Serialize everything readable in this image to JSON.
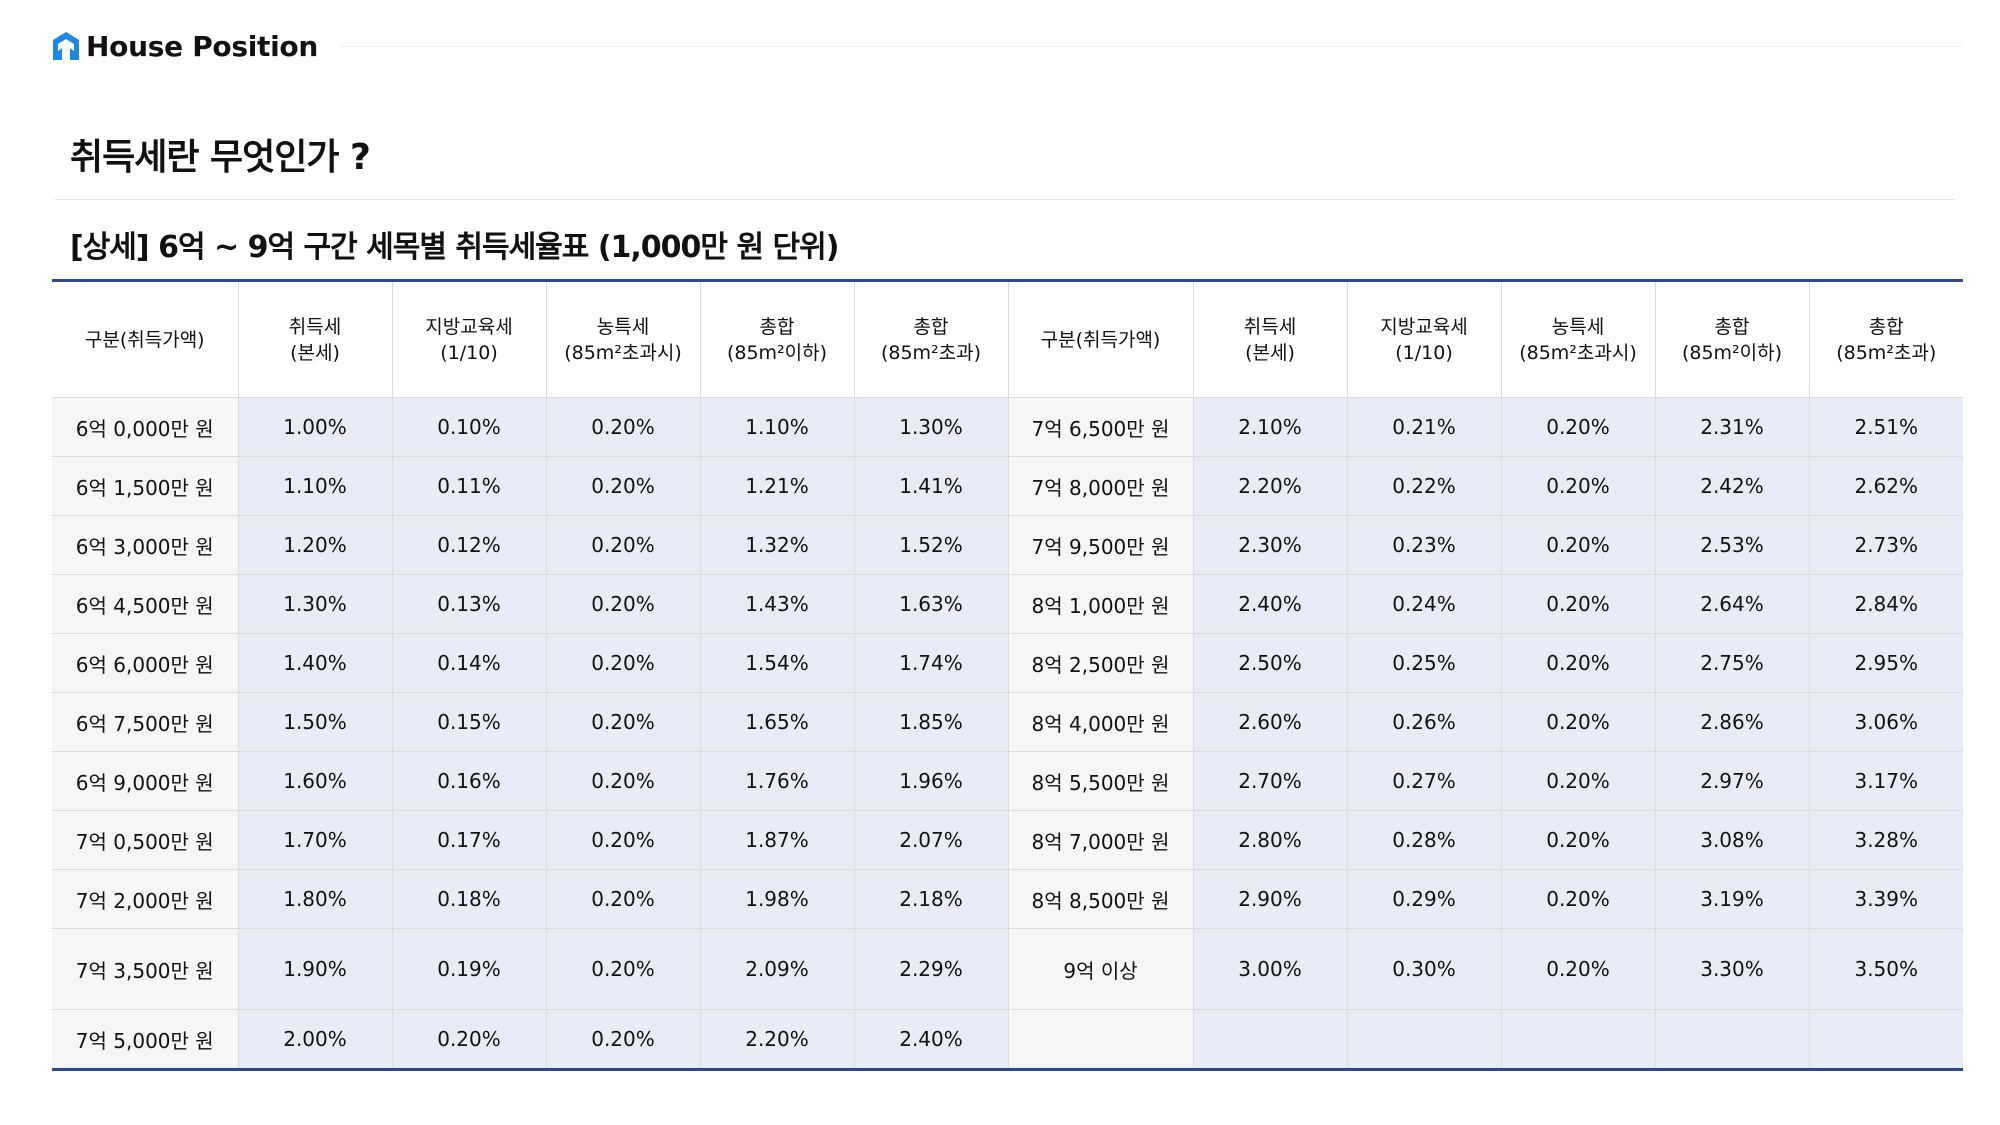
{
  "brand": "House Position",
  "page_title": "취득세란 무엇인가 ?",
  "table_title": "[상세] 6억 ~ 9억 구간 세목별 취득세율표 (1,000만 원 단위)",
  "columns": [
    [
      "구분(취득가액)"
    ],
    [
      "취득세",
      "(본세)"
    ],
    [
      "지방교육세",
      "(1/10)"
    ],
    [
      "농특세",
      "(85m²초과시)"
    ],
    [
      "총합",
      "(85m²이하)"
    ],
    [
      "총합",
      "(85m²초과)"
    ],
    [
      "구분(취득가액)"
    ],
    [
      "취득세",
      "(본세)"
    ],
    [
      "지방교육세",
      "(1/10)"
    ],
    [
      "농특세",
      "(85m²초과시)"
    ],
    [
      "총합",
      "(85m²이하)"
    ],
    [
      "총합",
      "(85m²초과)"
    ]
  ],
  "rows": [
    [
      "6억 0,000만 원",
      "1.00%",
      "0.10%",
      "0.20%",
      "1.10%",
      "1.30%",
      "7억 6,500만 원",
      "2.10%",
      "0.21%",
      "0.20%",
      "2.31%",
      "2.51%"
    ],
    [
      "6억 1,500만 원",
      "1.10%",
      "0.11%",
      "0.20%",
      "1.21%",
      "1.41%",
      "7억 8,000만 원",
      "2.20%",
      "0.22%",
      "0.20%",
      "2.42%",
      "2.62%"
    ],
    [
      "6억 3,000만 원",
      "1.20%",
      "0.12%",
      "0.20%",
      "1.32%",
      "1.52%",
      "7억 9,500만 원",
      "2.30%",
      "0.23%",
      "0.20%",
      "2.53%",
      "2.73%"
    ],
    [
      "6억 4,500만 원",
      "1.30%",
      "0.13%",
      "0.20%",
      "1.43%",
      "1.63%",
      "8억 1,000만 원",
      "2.40%",
      "0.24%",
      "0.20%",
      "2.64%",
      "2.84%"
    ],
    [
      "6억 6,000만 원",
      "1.40%",
      "0.14%",
      "0.20%",
      "1.54%",
      "1.74%",
      "8억 2,500만 원",
      "2.50%",
      "0.25%",
      "0.20%",
      "2.75%",
      "2.95%"
    ],
    [
      "6억 7,500만 원",
      "1.50%",
      "0.15%",
      "0.20%",
      "1.65%",
      "1.85%",
      "8억 4,000만 원",
      "2.60%",
      "0.26%",
      "0.20%",
      "2.86%",
      "3.06%"
    ],
    [
      "6억 9,000만 원",
      "1.60%",
      "0.16%",
      "0.20%",
      "1.76%",
      "1.96%",
      "8억 5,500만 원",
      "2.70%",
      "0.27%",
      "0.20%",
      "2.97%",
      "3.17%"
    ],
    [
      "7억 0,500만 원",
      "1.70%",
      "0.17%",
      "0.20%",
      "1.87%",
      "2.07%",
      "8억 7,000만 원",
      "2.80%",
      "0.28%",
      "0.20%",
      "3.08%",
      "3.28%"
    ],
    [
      "7억 2,000만 원",
      "1.80%",
      "0.18%",
      "0.20%",
      "1.98%",
      "2.18%",
      "8억 8,500만 원",
      "2.90%",
      "0.29%",
      "0.20%",
      "3.19%",
      "3.39%"
    ],
    [
      "7억 3,500만 원",
      "1.90%",
      "0.19%",
      "0.20%",
      "2.09%",
      "2.29%",
      "9억 이상",
      "3.00%",
      "0.30%",
      "0.20%",
      "3.30%",
      "3.50%"
    ],
    [
      "7억 5,000만 원",
      "2.00%",
      "0.20%",
      "0.20%",
      "2.20%",
      "2.40%",
      "",
      "",
      "",
      "",
      "",
      ""
    ]
  ],
  "colors": {
    "accent": "#2c4a8f",
    "logo": "#1e88e5",
    "value_cell": "#e7ecf7",
    "label_cell": "#f6f6f6"
  }
}
